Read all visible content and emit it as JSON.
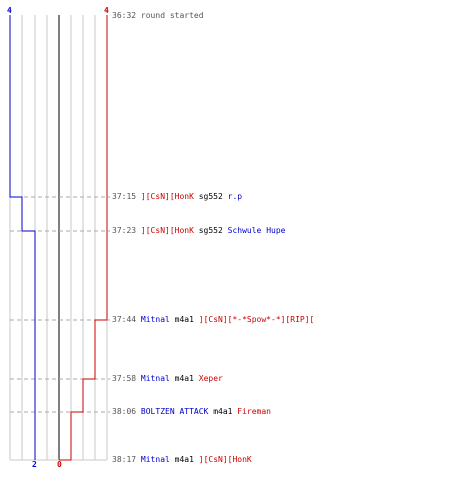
{
  "colors": {
    "team_blue": "#0000cc",
    "team_red": "#cc0000",
    "grid": "#c8c8c8",
    "axis": "#555555",
    "dash": "#aaaaaa"
  },
  "scores": {
    "blue_start": "4",
    "red_start": "4",
    "blue_end": "2",
    "red_end": "0"
  },
  "events": [
    {
      "time": "36:32",
      "text": "round started"
    },
    {
      "time": "37:15",
      "killer": "][CsN][HonK",
      "killer_team": "red",
      "weapon": "sg552",
      "victim": "r.p",
      "victim_team": "blue"
    },
    {
      "time": "37:23",
      "killer": "][CsN][HonK",
      "killer_team": "red",
      "weapon": "sg552",
      "victim": "Schwule Hupe",
      "victim_team": "blue"
    },
    {
      "time": "37:44",
      "killer": "Mitnal",
      "killer_team": "blue",
      "weapon": "m4a1",
      "victim": "][CsN][*-*Spow*-*][RIP][",
      "victim_team": "red"
    },
    {
      "time": "37:58",
      "killer": "Mitnal",
      "killer_team": "blue",
      "weapon": "m4a1",
      "victim": "Xeper",
      "victim_team": "red"
    },
    {
      "time": "38:06",
      "killer": "BOLTZEN ATTACK",
      "killer_team": "blue",
      "weapon": "m4a1",
      "victim": "Fireman",
      "victim_team": "red"
    },
    {
      "time": "38:17",
      "killer": "Mitnal",
      "killer_team": "blue",
      "weapon": "m4a1",
      "victim": "][CsN][HonK",
      "victim_team": "red"
    }
  ]
}
